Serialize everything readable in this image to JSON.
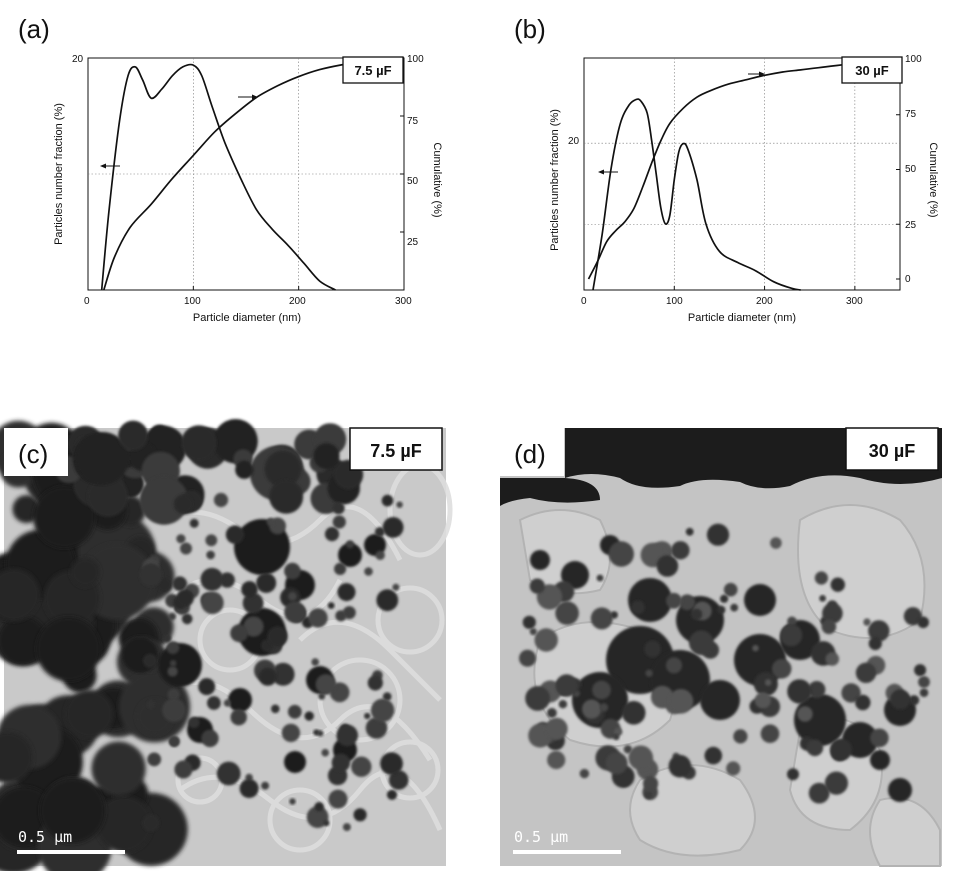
{
  "panels": {
    "a": {
      "label": "(a)"
    },
    "b": {
      "label": "(b)"
    },
    "c": {
      "label": "(c)",
      "tag": "7.5 µF",
      "scale": "0.5 µm"
    },
    "d": {
      "label": "(d)",
      "tag": "30 µF",
      "scale": "0.5 µm"
    }
  },
  "chart_data": [
    {
      "type": "line",
      "panel": "a",
      "tag": "7.5 µF",
      "xlabel": "Particle diameter (nm)",
      "ylabel": "Particles number fraction (%)",
      "y2label": "Cumulative (%)",
      "xlim": [
        0,
        300
      ],
      "xticks": [
        "0",
        "100",
        "200",
        "300"
      ],
      "yticks": [
        "20"
      ],
      "y2lim": [
        0,
        100
      ],
      "y2ticks": [
        "25",
        "50",
        "75",
        "100"
      ],
      "grid": true,
      "series": [
        {
          "axis": "left",
          "x": [
            13,
            20,
            30,
            38,
            45,
            52,
            60,
            70,
            80,
            90,
            100,
            108,
            118,
            130,
            145,
            160,
            175,
            190,
            205,
            220,
            235
          ],
          "y": [
            0,
            9,
            19,
            24,
            25,
            23.5,
            21.5,
            22.5,
            24,
            25,
            25.2,
            24,
            20.5,
            16.5,
            12.5,
            9,
            6.8,
            5,
            3,
            1,
            0
          ]
        },
        {
          "axis": "right",
          "x": [
            15,
            25,
            40,
            60,
            80,
            100,
            120,
            140,
            160,
            180,
            200,
            220,
            240,
            260,
            280,
            300
          ],
          "y": [
            0,
            14,
            27,
            37,
            48,
            58,
            68,
            76,
            83,
            88,
            92,
            95,
            97,
            98.5,
            99.3,
            100
          ]
        }
      ]
    },
    {
      "type": "line",
      "panel": "b",
      "tag": "30 µF",
      "xlabel": "Particle diameter (nm)",
      "ylabel": "Particles number fraction (%)",
      "y2label": "Cumulative (%)",
      "xlim": [
        0,
        350
      ],
      "xticks": [
        "0",
        "100",
        "200",
        "300"
      ],
      "yticks": [
        "20"
      ],
      "y2lim": [
        -5,
        100
      ],
      "y2ticks": [
        "0",
        "25",
        "50",
        "75",
        "100"
      ],
      "grid": true,
      "series": [
        {
          "axis": "left",
          "x": [
            10,
            20,
            30,
            40,
            50,
            58,
            63,
            70,
            75,
            80,
            85,
            90,
            95,
            100,
            105,
            110,
            115,
            125,
            135,
            150,
            170,
            190,
            210,
            230,
            240
          ],
          "y": [
            0,
            10,
            22,
            30,
            33.5,
            34.5,
            34.2,
            32,
            27,
            21,
            15,
            12,
            13.5,
            20,
            25,
            26.5,
            25.5,
            20,
            12,
            7,
            5,
            3.5,
            1.5,
            0.3,
            0
          ]
        },
        {
          "axis": "right",
          "x": [
            5,
            15,
            25,
            35,
            45,
            55,
            65,
            75,
            85,
            95,
            110,
            125,
            140,
            160,
            180,
            200,
            220,
            240,
            260,
            280,
            300,
            320,
            350
          ],
          "y": [
            0,
            8,
            17,
            22,
            26,
            32,
            42,
            53,
            63,
            71,
            78,
            83,
            86,
            89,
            91,
            93,
            94.5,
            95.5,
            96.5,
            97.5,
            98.5,
            99.3,
            100
          ]
        }
      ]
    }
  ],
  "colors": {
    "line": "#111111",
    "grid": "#7a7a7a",
    "tem_bg": "#c8c8c8",
    "tem_dark": "#2b2b2b"
  }
}
